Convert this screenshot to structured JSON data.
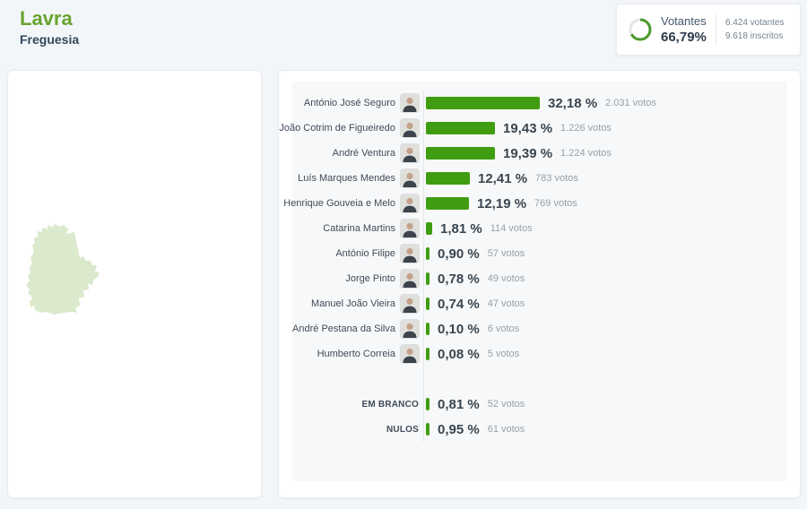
{
  "header": {
    "title": "Lavra",
    "subtitle": "Freguesia"
  },
  "votantes": {
    "label": "Votantes",
    "percent": "66,79%",
    "percent_value": 66.79,
    "line1": "6.424 votantes",
    "line2": "9.618 inscritos"
  },
  "colors": {
    "page_bg": "#f3f6f9",
    "title_green": "#68a42e",
    "dark_text": "#33475b",
    "bar_green": "#409d11",
    "donut_green": "#4a9b2e",
    "donut_track": "#e3e6e9",
    "chart_bg": "#f7f8f9",
    "axis_line": "#e2e5e9",
    "map_fill": "#dbe9cc",
    "votes_text": "#97a0a8",
    "label_text": "#3e4b58"
  },
  "chart_data": {
    "type": "bar",
    "title": "",
    "xlabel": "",
    "ylabel": "",
    "unit": "%",
    "xlim": [
      0,
      100
    ],
    "grid": false,
    "legend": "none",
    "orientation": "horizontal",
    "categories": [
      "António José Seguro",
      "João Cotrim de Figueiredo",
      "André Ventura",
      "Luís Marques Mendes",
      "Henrique Gouveia e Melo",
      "Catarina Martins",
      "António Filipe",
      "Jorge Pinto",
      "Manuel João Vieira",
      "André Pestana da Silva",
      "Humberto Correia",
      "EM BRANCO",
      "NULOS"
    ],
    "values": [
      32.18,
      19.43,
      19.39,
      12.41,
      12.19,
      1.81,
      0.9,
      0.78,
      0.74,
      0.1,
      0.08,
      0.81,
      0.95
    ],
    "rows": [
      {
        "name": "António José Seguro",
        "percent": 32.18,
        "percent_label": "32,18 %",
        "votes": 2031,
        "votes_label": "2.031 votos",
        "has_avatar": true
      },
      {
        "name": "João Cotrim de Figueiredo",
        "percent": 19.43,
        "percent_label": "19,43 %",
        "votes": 1226,
        "votes_label": "1.226 votos",
        "has_avatar": true
      },
      {
        "name": "André Ventura",
        "percent": 19.39,
        "percent_label": "19,39 %",
        "votes": 1224,
        "votes_label": "1.224 votos",
        "has_avatar": true
      },
      {
        "name": "Luís Marques Mendes",
        "percent": 12.41,
        "percent_label": "12,41 %",
        "votes": 783,
        "votes_label": "783 votos",
        "has_avatar": true
      },
      {
        "name": "Henrique Gouveia e Melo",
        "percent": 12.19,
        "percent_label": "12,19 %",
        "votes": 769,
        "votes_label": "769 votos",
        "has_avatar": true
      },
      {
        "name": "Catarina Martins",
        "percent": 1.81,
        "percent_label": "1,81 %",
        "votes": 114,
        "votes_label": "114 votos",
        "has_avatar": true
      },
      {
        "name": "António Filipe",
        "percent": 0.9,
        "percent_label": "0,90 %",
        "votes": 57,
        "votes_label": "57 votos",
        "has_avatar": true
      },
      {
        "name": "Jorge Pinto",
        "percent": 0.78,
        "percent_label": "0,78 %",
        "votes": 49,
        "votes_label": "49 votos",
        "has_avatar": true
      },
      {
        "name": "Manuel João Vieira",
        "percent": 0.74,
        "percent_label": "0,74 %",
        "votes": 47,
        "votes_label": "47 votos",
        "has_avatar": true
      },
      {
        "name": "André Pestana da Silva",
        "percent": 0.1,
        "percent_label": "0,10 %",
        "votes": 6,
        "votes_label": "6 votos",
        "has_avatar": true
      },
      {
        "name": "Humberto Correia",
        "percent": 0.08,
        "percent_label": "0,08 %",
        "votes": 5,
        "votes_label": "5 votos",
        "has_avatar": true
      }
    ],
    "special_rows": [
      {
        "name": "EM BRANCO",
        "percent": 0.81,
        "percent_label": "0,81 %",
        "votes": 52,
        "votes_label": "52 votos",
        "has_avatar": false
      },
      {
        "name": "NULOS",
        "percent": 0.95,
        "percent_label": "0,95 %",
        "votes": 61,
        "votes_label": "61 votos",
        "has_avatar": false
      }
    ]
  }
}
